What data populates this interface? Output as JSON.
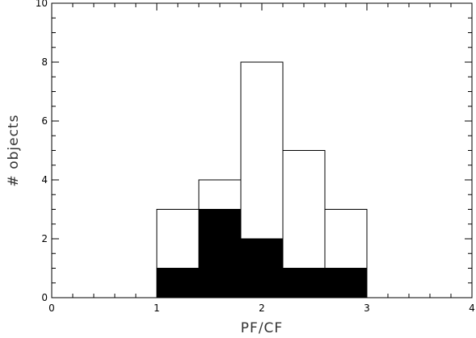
{
  "chart_data": {
    "type": "bar",
    "xlabel": "PF/CF",
    "ylabel": "# objects",
    "xlim": [
      0,
      4
    ],
    "ylim": [
      0,
      10
    ],
    "x_ticks": [
      "0",
      "1",
      "2",
      "3",
      "4"
    ],
    "y_ticks": [
      "0",
      "2",
      "4",
      "6",
      "8",
      "10"
    ],
    "grid": false,
    "bin_edges": [
      1.0,
      1.4,
      1.8,
      2.2,
      2.6,
      3.0
    ],
    "series": [
      {
        "style": "open",
        "color": "#ffffff",
        "values": [
          3,
          4,
          8,
          5,
          3
        ]
      },
      {
        "style": "filled",
        "color": "#000000",
        "values": [
          1,
          3,
          2,
          1,
          1
        ]
      }
    ]
  }
}
